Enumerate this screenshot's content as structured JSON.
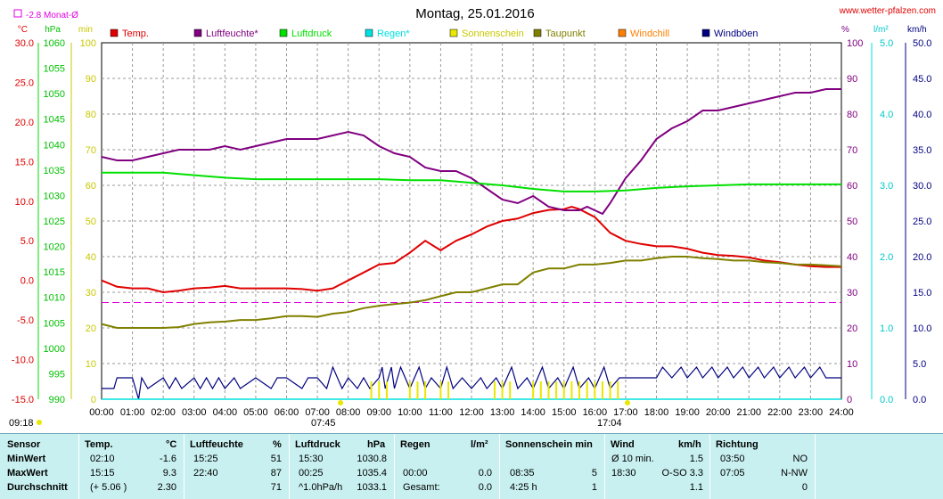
{
  "header": {
    "title": "Montag, 25.01.2016",
    "site": "www.wetter-pfalzen.com",
    "month_avg_label": "-2.8 Monat-Ø",
    "sunrise": "07:45",
    "sunset": "17:04",
    "daylength_label": "09:18"
  },
  "colors": {
    "temp": "#e00000",
    "humidity": "#800080",
    "pressure": "#00e000",
    "rain": "#00e0e0",
    "sunshine": "#e8e800",
    "dewpoint": "#808000",
    "windchill": "#ff8000",
    "gust": "#000080",
    "month_avg": "#e000e0",
    "stats_bg": "#c8f0f0"
  },
  "axes": {
    "temp": {
      "unit": "°C",
      "labels": [
        "30.0",
        "25.0",
        "20.0",
        "15.0",
        "10.0",
        "5.0",
        "0.0",
        "-5.0",
        "-10.0",
        "-15.0"
      ]
    },
    "pressure": {
      "unit": "hPa",
      "labels": [
        "1060",
        "1055",
        "1050",
        "1045",
        "1040",
        "1035",
        "1030",
        "1025",
        "1020",
        "1015",
        "1010",
        "1005",
        "1000",
        "995",
        "990"
      ]
    },
    "sunshine": {
      "unit": "min",
      "labels": [
        "100",
        "90",
        "80",
        "70",
        "60",
        "50",
        "40",
        "30",
        "20",
        "10",
        "0"
      ]
    },
    "humidity": {
      "unit": "%",
      "labels": [
        "100",
        "90",
        "80",
        "70",
        "60",
        "50",
        "40",
        "30",
        "20",
        "10",
        "0"
      ]
    },
    "rain": {
      "unit": "l/m²",
      "labels": [
        "5.0",
        "4.0",
        "3.0",
        "2.0",
        "1.0",
        "0.0"
      ]
    },
    "wind": {
      "unit": "km/h",
      "labels": [
        "50.0",
        "45.0",
        "40.0",
        "35.0",
        "30.0",
        "25.0",
        "20.0",
        "15.0",
        "10.0",
        "5.0",
        "0.0"
      ]
    },
    "x_labels": [
      "00:00",
      "01:00",
      "02:00",
      "03:00",
      "04:00",
      "05:00",
      "06:00",
      "07:00",
      "08:00",
      "09:00",
      "10:00",
      "11:00",
      "12:00",
      "13:00",
      "14:00",
      "15:00",
      "16:00",
      "17:00",
      "18:00",
      "19:00",
      "20:00",
      "21:00",
      "22:00",
      "23:00",
      "24:00"
    ]
  },
  "legend": [
    {
      "label": "Temp.",
      "color": "#e00000"
    },
    {
      "label": "Luftfeuchte*",
      "color": "#800080"
    },
    {
      "label": "Luftdruck",
      "color": "#00e000"
    },
    {
      "label": "Regen*",
      "color": "#00e0e0"
    },
    {
      "label": "Sonnenschein",
      "color": "#e8e800"
    },
    {
      "label": "Taupunkt",
      "color": "#808000"
    },
    {
      "label": "Windchill",
      "color": "#ff8000"
    },
    {
      "label": "Windböen",
      "color": "#000080"
    }
  ],
  "chart_data": {
    "type": "line",
    "title": "Montag, 25.01.2016",
    "x_unit": "hour",
    "xlim": [
      0,
      24
    ],
    "grid": true,
    "legend_position": "top",
    "month_avg_temp": -2.8,
    "series": [
      {
        "name": "Temp.",
        "axis": "temp",
        "ylim": [
          -15,
          30
        ],
        "x": [
          0,
          0.5,
          1,
          1.5,
          2,
          2.5,
          3,
          3.5,
          4,
          4.5,
          5,
          5.5,
          6,
          6.5,
          7,
          7.5,
          8,
          8.5,
          9,
          9.5,
          10,
          10.5,
          11,
          11.5,
          12,
          12.5,
          13,
          13.5,
          14,
          14.5,
          15,
          15.25,
          15.5,
          16,
          16.5,
          17,
          17.5,
          18,
          18.5,
          19,
          19.5,
          20,
          20.5,
          21,
          21.5,
          22,
          22.5,
          23,
          23.5,
          24
        ],
        "y": [
          0.0,
          -0.8,
          -1.0,
          -1.0,
          -1.5,
          -1.3,
          -1.0,
          -0.9,
          -0.7,
          -1.0,
          -1.0,
          -1.0,
          -1.0,
          -1.1,
          -1.3,
          -1.0,
          0.0,
          1.0,
          2.0,
          2.2,
          3.5,
          5.0,
          3.8,
          5.0,
          5.8,
          6.8,
          7.5,
          7.8,
          8.5,
          8.9,
          9.0,
          9.3,
          9.0,
          8.0,
          6.0,
          5.0,
          4.6,
          4.3,
          4.3,
          4.0,
          3.5,
          3.2,
          3.1,
          2.9,
          2.5,
          2.3,
          2.0,
          1.8,
          1.7,
          1.7
        ]
      },
      {
        "name": "Luftfeuchte*",
        "axis": "humidity",
        "ylim": [
          0,
          100
        ],
        "x": [
          0,
          0.5,
          1,
          1.5,
          2,
          2.5,
          3,
          3.5,
          4,
          4.5,
          5,
          5.5,
          6,
          6.5,
          7,
          7.5,
          8,
          8.5,
          9,
          9.5,
          10,
          10.5,
          11,
          11.5,
          12,
          12.5,
          13,
          13.5,
          14,
          14.5,
          15,
          15.5,
          15.75,
          16,
          16.25,
          16.5,
          17,
          17.5,
          18,
          18.5,
          19,
          19.5,
          20,
          20.5,
          21,
          21.5,
          22,
          22.5,
          23,
          23.5,
          24
        ],
        "y": [
          68,
          67,
          67,
          68,
          69,
          70,
          70,
          70,
          71,
          70,
          71,
          72,
          73,
          73,
          73,
          74,
          75,
          74,
          71,
          69,
          68,
          65,
          64,
          64,
          62,
          59,
          56,
          55,
          57,
          54,
          53,
          53,
          54,
          53,
          52,
          55,
          62,
          67,
          73,
          76,
          78,
          81,
          81,
          82,
          83,
          84,
          85,
          86,
          86,
          87,
          87
        ]
      },
      {
        "name": "Luftdruck",
        "axis": "pressure",
        "ylim": [
          990,
          1060
        ],
        "x": [
          0,
          1,
          2,
          3,
          4,
          5,
          6,
          7,
          8,
          9,
          10,
          11,
          12,
          13,
          14,
          15,
          16,
          17,
          18,
          19,
          20,
          21,
          22,
          23,
          24
        ],
        "y": [
          1034.5,
          1034.5,
          1034.5,
          1034,
          1033.5,
          1033.2,
          1033.2,
          1033.2,
          1033.2,
          1033.2,
          1033,
          1033,
          1032.5,
          1032,
          1031.3,
          1030.8,
          1030.8,
          1031,
          1031.5,
          1031.8,
          1032,
          1032.2,
          1032.2,
          1032.2,
          1032.2
        ]
      },
      {
        "name": "Taupunkt",
        "axis": "temp",
        "ylim": [
          -15,
          30
        ],
        "x": [
          0,
          0.5,
          1,
          1.5,
          2,
          2.5,
          3,
          3.5,
          4,
          4.5,
          5,
          5.5,
          6,
          6.5,
          7,
          7.5,
          8,
          8.5,
          9,
          9.5,
          10,
          10.5,
          11,
          11.5,
          12,
          12.5,
          13,
          13.5,
          14,
          14.5,
          15,
          15.5,
          16,
          16.5,
          17,
          17.5,
          18,
          18.5,
          19,
          19.5,
          20,
          20.5,
          21,
          21.5,
          22,
          22.5,
          23,
          23.5,
          24
        ],
        "y": [
          -5.5,
          -6.0,
          -6.0,
          -6.0,
          -6.0,
          -5.9,
          -5.5,
          -5.3,
          -5.2,
          -5.0,
          -5.0,
          -4.8,
          -4.5,
          -4.5,
          -4.6,
          -4.2,
          -4.0,
          -3.5,
          -3.2,
          -3.0,
          -2.8,
          -2.5,
          -2.0,
          -1.5,
          -1.5,
          -1.0,
          -0.5,
          -0.5,
          1.0,
          1.5,
          1.5,
          2.0,
          2.0,
          2.2,
          2.5,
          2.5,
          2.8,
          3.0,
          3.0,
          2.8,
          2.7,
          2.5,
          2.5,
          2.3,
          2.2,
          2.0,
          2.0,
          1.9,
          1.8
        ]
      },
      {
        "name": "Windböen",
        "axis": "wind",
        "ylim": [
          0,
          50
        ],
        "x": [
          0,
          0.4,
          0.5,
          1,
          1.1,
          1.2,
          1.3,
          1.5,
          2,
          2.2,
          2.4,
          2.6,
          3,
          3.2,
          3.4,
          3.6,
          3.8,
          4,
          4.3,
          4.5,
          5,
          5.5,
          5.7,
          6,
          6.5,
          6.7,
          7,
          7.3,
          7.5,
          7.8,
          8,
          8.3,
          8.5,
          8.7,
          9,
          9.1,
          9.2,
          9.4,
          9.5,
          9.7,
          10,
          10.3,
          10.5,
          10.7,
          11,
          11.2,
          11.4,
          11.7,
          12,
          12.3,
          12.5,
          12.8,
          13,
          13.3,
          13.5,
          13.8,
          14,
          14.3,
          14.5,
          14.8,
          15,
          15.3,
          15.5,
          15.8,
          16,
          16.3,
          16.5,
          16.8,
          17,
          17.3,
          17.5,
          18,
          18.2,
          18.5,
          18.8,
          19,
          19.3,
          19.5,
          19.8,
          20,
          20.3,
          20.5,
          20.8,
          21,
          21.3,
          21.5,
          21.8,
          22,
          22.3,
          22.5,
          22.8,
          23,
          23.3,
          23.5,
          24
        ],
        "y": [
          1.5,
          1.5,
          3.0,
          3.0,
          1.5,
          0.0,
          3.0,
          1.5,
          3.0,
          1.5,
          3.0,
          1.5,
          3.0,
          1.5,
          3.0,
          1.5,
          3.0,
          1.5,
          3.0,
          1.5,
          3.0,
          1.5,
          3.0,
          3.0,
          1.5,
          3.0,
          3.0,
          1.5,
          4.5,
          1.5,
          3.0,
          1.5,
          3.0,
          1.5,
          3.0,
          4.5,
          1.5,
          4.5,
          1.5,
          4.5,
          1.5,
          4.5,
          1.5,
          3.0,
          1.5,
          4.5,
          1.5,
          3.0,
          1.5,
          3.0,
          1.5,
          3.0,
          1.5,
          4.5,
          1.5,
          3.0,
          1.5,
          4.5,
          1.5,
          3.0,
          1.5,
          4.5,
          1.5,
          3.0,
          1.5,
          4.5,
          1.5,
          3.0,
          3.0,
          3.0,
          3.0,
          3.0,
          4.5,
          3.0,
          4.5,
          3.0,
          4.5,
          3.0,
          4.5,
          3.0,
          4.5,
          3.0,
          4.5,
          3.0,
          4.5,
          3.0,
          4.5,
          3.0,
          4.5,
          3.0,
          4.5,
          3.0,
          4.5,
          3.0,
          3.0
        ]
      },
      {
        "name": "Regen*",
        "axis": "rain",
        "ylim": [
          0,
          5
        ],
        "x": [
          0,
          24
        ],
        "y": [
          0,
          0
        ]
      },
      {
        "name": "Sonnenschein",
        "type": "bar",
        "axis": "sunshine",
        "ylim": [
          0,
          100
        ],
        "x": [
          8.75,
          9.0,
          9.25,
          10.0,
          10.25,
          10.5,
          11.0,
          11.25,
          12.75,
          13.0,
          13.25,
          14.0,
          14.25,
          14.5,
          14.75,
          15.0,
          15.25,
          15.5,
          15.75,
          16.0,
          16.25,
          16.5,
          16.75
        ],
        "y": [
          5,
          5,
          5,
          5,
          5,
          5,
          5,
          5,
          5,
          5,
          5,
          5,
          5,
          5,
          5,
          5,
          5,
          5,
          5,
          5,
          5,
          5,
          5
        ]
      }
    ]
  },
  "stats": {
    "headers": {
      "sensor": "Sensor",
      "temp": "Temp.",
      "temp_unit": "°C",
      "hum": "Luftfeuchte",
      "hum_unit": "%",
      "press": "Luftdruck",
      "press_unit": "hPa",
      "rain": "Regen",
      "rain_unit": "l/m²",
      "sun": "Sonnenschein min",
      "wind": "Wind",
      "wind_unit": "km/h",
      "dir": "Richtung"
    },
    "rows": [
      {
        "label": "MinWert",
        "temp_time": "02:10",
        "temp_val": "-1.6",
        "hum_time": "15:25",
        "hum_val": "51",
        "press_time": "15:30",
        "press_val": "1030.8",
        "rain_time": "",
        "rain_val": "",
        "sun_time": "",
        "sun_val": "",
        "wind_time": "Ø 10 min.",
        "wind_val": "1.5",
        "dir_time": "03:50",
        "dir_val": "NO"
      },
      {
        "label": "MaxWert",
        "temp_time": "15:15",
        "temp_val": "9.3",
        "hum_time": "22:40",
        "hum_val": "87",
        "press_time": "00:25",
        "press_val": "1035.4",
        "rain_time": "00:00",
        "rain_val": "0.0",
        "sun_time": "08:35",
        "sun_val": "5",
        "wind_time": "18:30",
        "wind_val": "O-SO 3.3",
        "dir_time": "07:05",
        "dir_val": "N-NW"
      },
      {
        "label": "Durchschnitt",
        "temp_time": "(+ 5.06 )",
        "temp_val": "2.30",
        "hum_time": "",
        "hum_val": "71",
        "press_time": "^1.0hPa/h",
        "press_val": "1033.1",
        "rain_time": "Gesamt:",
        "rain_val": "0.0",
        "sun_time": "4:25 h",
        "sun_val": "1",
        "wind_time": "",
        "wind_val": "1.1",
        "dir_time": "",
        "dir_val": "0"
      }
    ]
  }
}
